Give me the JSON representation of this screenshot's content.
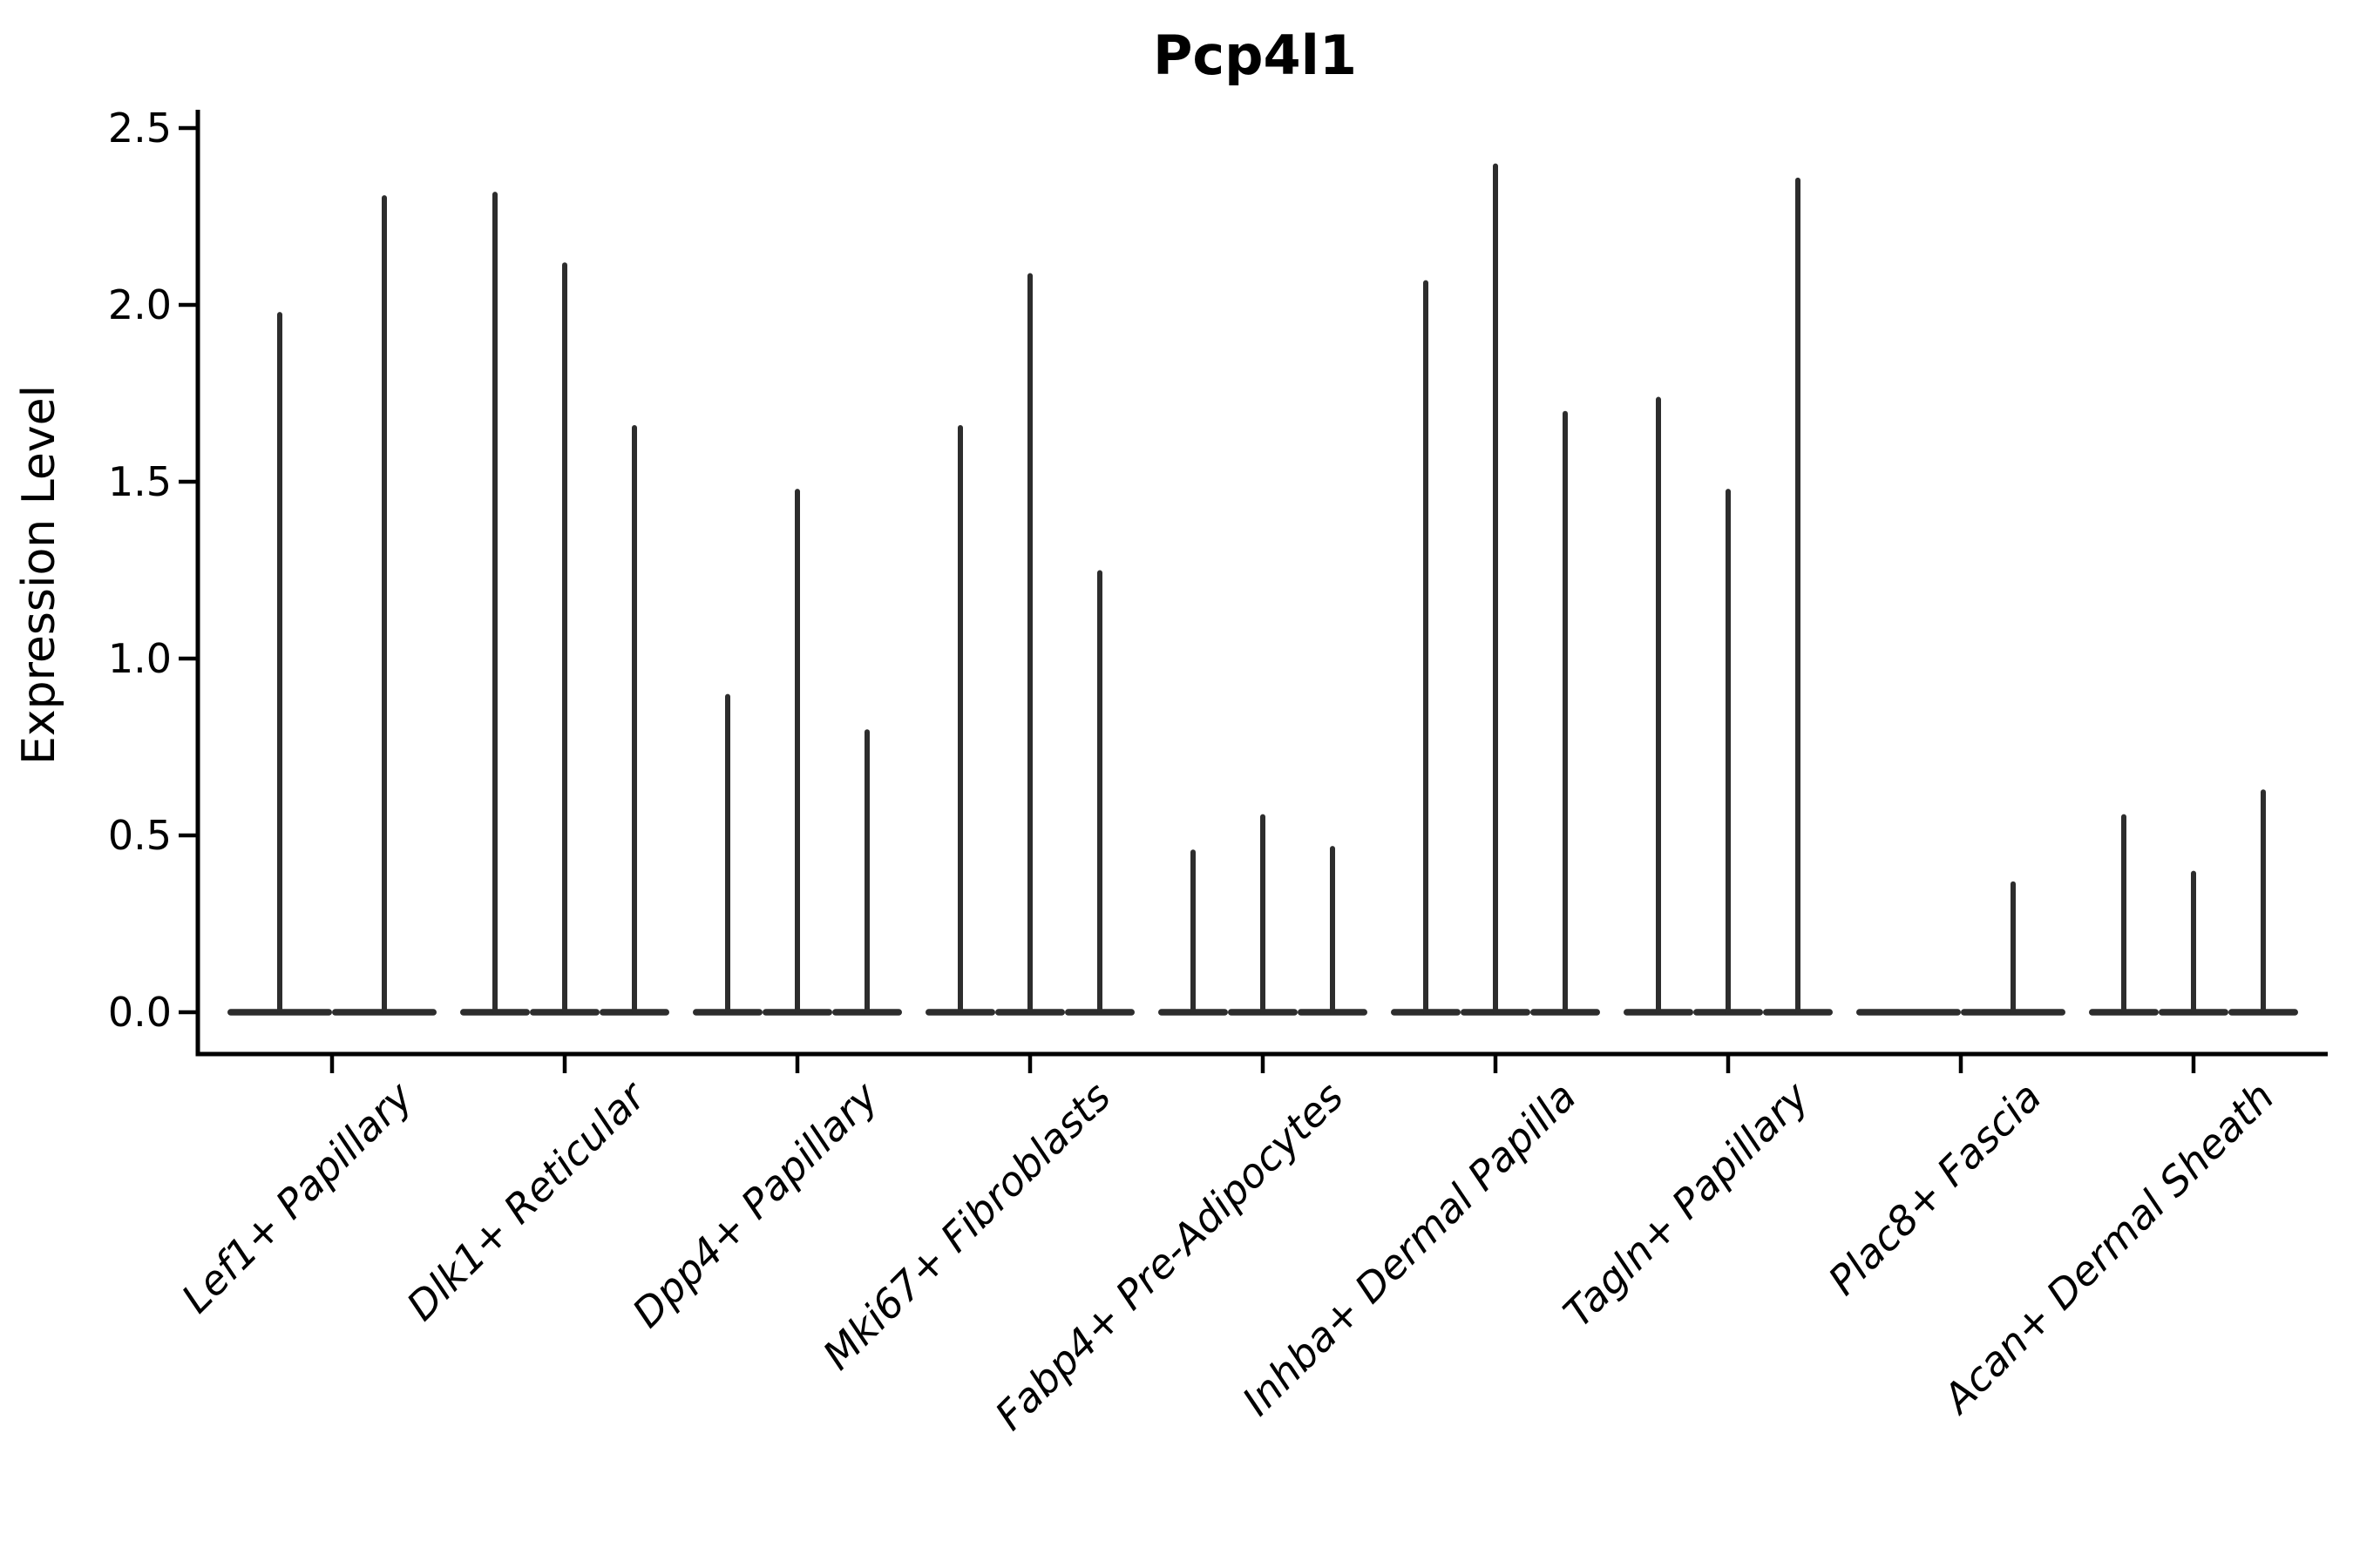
{
  "title": "Pcp4l1",
  "y_axis": {
    "label": "Expression Level",
    "tick_labels": [
      "0.0",
      "0.5",
      "1.0",
      "1.5",
      "2.0",
      "2.5"
    ],
    "tick_values": [
      0.0,
      0.5,
      1.0,
      1.5,
      2.0,
      2.5
    ]
  },
  "chart_data": {
    "type": "violin",
    "title": "Pcp4l1",
    "xlabel": "",
    "ylabel": "Expression Level",
    "ylim": [
      0.0,
      2.5
    ],
    "yticks": [
      0.0,
      0.5,
      1.0,
      1.5,
      2.0,
      2.5
    ],
    "grid": false,
    "legend": "none",
    "style": "Seurat-style stacked violin: most cells at 0 giving flat dark bases at y=0 with one thin vertical spike per violin up to its maximum expression; x tick labels rotated 45 degrees, italic",
    "categories": [
      "Lef1+ Papillary",
      "Dlk1+ Reticular",
      "Dpp4+ Papillary",
      "Mki67+ Fibroblasts",
      "Fabp4+ Pre-Adipocytes",
      "Inhba+ Dermal Papilla",
      "Tagln+ Papillary",
      "Plac8+ Fascia",
      "Acan+ Dermal Sheath"
    ],
    "groups": [
      {
        "category": "Lef1+ Papillary",
        "violin_max_expression": [
          1.98,
          2.31
        ]
      },
      {
        "category": "Dlk1+ Reticular",
        "violin_max_expression": [
          2.32,
          2.12,
          1.66
        ]
      },
      {
        "category": "Dpp4+ Papillary",
        "violin_max_expression": [
          0.9,
          1.48,
          0.8
        ]
      },
      {
        "category": "Mki67+ Fibroblasts",
        "violin_max_expression": [
          1.66,
          2.09,
          1.25
        ]
      },
      {
        "category": "Fabp4+ Pre-Adipocytes",
        "violin_max_expression": [
          0.46,
          0.56,
          0.47
        ]
      },
      {
        "category": "Inhba+ Dermal Papilla",
        "violin_max_expression": [
          2.07,
          2.4,
          1.7
        ]
      },
      {
        "category": "Tagln+ Papillary",
        "violin_max_expression": [
          1.74,
          1.48,
          2.36
        ]
      },
      {
        "category": "Plac8+ Fascia",
        "violin_max_expression": [
          0.0,
          0.37
        ]
      },
      {
        "category": "Acan+ Dermal Sheath",
        "violin_max_expression": [
          0.56,
          0.4,
          0.63
        ]
      }
    ]
  },
  "colors": {
    "violin": "#2d2d2d",
    "axis": "#000000",
    "text": "#000000",
    "background": "#ffffff"
  }
}
